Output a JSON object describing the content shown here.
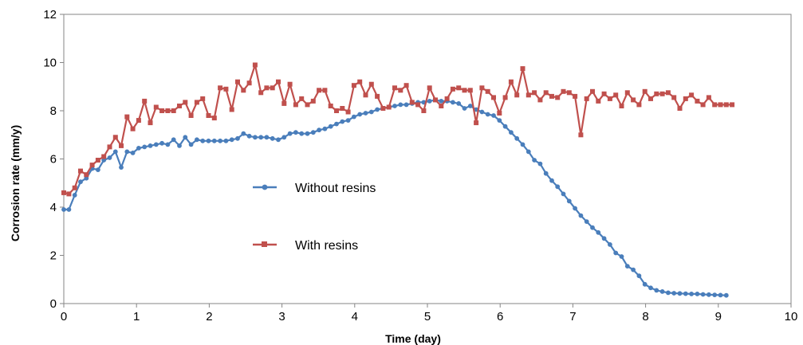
{
  "chart_data": {
    "type": "line",
    "xlabel": "Time (day)",
    "ylabel": "Corrosion rate (mm/y)",
    "xlim": [
      0,
      10
    ],
    "ylim": [
      0,
      12
    ],
    "xticks": [
      "0",
      "1",
      "2",
      "3",
      "4",
      "5",
      "6",
      "7",
      "8",
      "9",
      "10"
    ],
    "yticks": [
      "0",
      "2",
      "4",
      "6",
      "8",
      "10",
      "12"
    ],
    "grid": false,
    "legend": "center-left",
    "series": [
      {
        "name": "Without resins",
        "color": "#4a7ebb",
        "marker": "circle",
        "x": [
          0,
          0.07,
          0.15,
          0.23,
          0.31,
          0.39,
          0.47,
          0.55,
          0.63,
          0.71,
          0.79,
          0.87,
          0.95,
          1.03,
          1.11,
          1.19,
          1.27,
          1.35,
          1.43,
          1.51,
          1.59,
          1.67,
          1.75,
          1.83,
          1.91,
          1.99,
          2.07,
          2.15,
          2.23,
          2.31,
          2.39,
          2.47,
          2.55,
          2.63,
          2.71,
          2.79,
          2.87,
          2.95,
          3.03,
          3.11,
          3.19,
          3.27,
          3.35,
          3.43,
          3.51,
          3.59,
          3.67,
          3.75,
          3.83,
          3.91,
          3.99,
          4.07,
          4.15,
          4.23,
          4.31,
          4.39,
          4.47,
          4.55,
          4.63,
          4.71,
          4.79,
          4.87,
          4.95,
          5.03,
          5.11,
          5.19,
          5.27,
          5.35,
          5.43,
          5.51,
          5.59,
          5.67,
          5.75,
          5.83,
          5.91,
          5.99,
          6.07,
          6.15,
          6.23,
          6.31,
          6.39,
          6.47,
          6.55,
          6.63,
          6.71,
          6.79,
          6.87,
          6.95,
          7.03,
          7.11,
          7.19,
          7.27,
          7.35,
          7.43,
          7.51,
          7.59,
          7.67,
          7.75,
          7.83,
          7.91,
          7.99,
          8.07,
          8.15,
          8.23,
          8.31,
          8.39,
          8.47,
          8.55,
          8.63,
          8.71,
          8.79,
          8.87,
          8.95,
          9.03,
          9.11
        ],
        "y": [
          3.9,
          3.9,
          4.5,
          5.05,
          5.2,
          5.6,
          5.55,
          5.95,
          6.05,
          6.3,
          5.65,
          6.3,
          6.25,
          6.45,
          6.5,
          6.55,
          6.6,
          6.65,
          6.6,
          6.8,
          6.55,
          6.9,
          6.6,
          6.8,
          6.75,
          6.75,
          6.75,
          6.75,
          6.75,
          6.8,
          6.85,
          7.05,
          6.95,
          6.9,
          6.9,
          6.9,
          6.85,
          6.8,
          6.9,
          7.05,
          7.1,
          7.05,
          7.05,
          7.1,
          7.2,
          7.25,
          7.35,
          7.45,
          7.55,
          7.6,
          7.75,
          7.85,
          7.9,
          7.95,
          8.05,
          8.1,
          8.15,
          8.2,
          8.25,
          8.25,
          8.3,
          8.35,
          8.35,
          8.4,
          8.45,
          8.4,
          8.4,
          8.35,
          8.3,
          8.1,
          8.2,
          8.05,
          7.95,
          7.85,
          7.8,
          7.6,
          7.35,
          7.1,
          6.85,
          6.6,
          6.3,
          5.95,
          5.8,
          5.4,
          5.1,
          4.85,
          4.55,
          4.25,
          3.95,
          3.65,
          3.4,
          3.15,
          2.95,
          2.7,
          2.45,
          2.1,
          1.95,
          1.55,
          1.4,
          1.15,
          0.8,
          0.65,
          0.55,
          0.5,
          0.45,
          0.43,
          0.42,
          0.41,
          0.4,
          0.4,
          0.38,
          0.37,
          0.36,
          0.35,
          0.34
        ]
      },
      {
        "name": "With resins",
        "color": "#c0504d",
        "marker": "square",
        "x": [
          0,
          0.07,
          0.15,
          0.23,
          0.31,
          0.39,
          0.47,
          0.55,
          0.63,
          0.71,
          0.79,
          0.87,
          0.95,
          1.03,
          1.11,
          1.19,
          1.27,
          1.35,
          1.43,
          1.51,
          1.59,
          1.67,
          1.75,
          1.83,
          1.91,
          1.99,
          2.07,
          2.15,
          2.23,
          2.31,
          2.39,
          2.47,
          2.55,
          2.63,
          2.71,
          2.79,
          2.87,
          2.95,
          3.03,
          3.11,
          3.19,
          3.27,
          3.35,
          3.43,
          3.51,
          3.59,
          3.67,
          3.75,
          3.83,
          3.91,
          3.99,
          4.07,
          4.15,
          4.23,
          4.31,
          4.39,
          4.47,
          4.55,
          4.63,
          4.71,
          4.79,
          4.87,
          4.95,
          5.03,
          5.11,
          5.19,
          5.27,
          5.35,
          5.43,
          5.51,
          5.59,
          5.67,
          5.75,
          5.83,
          5.91,
          5.99,
          6.07,
          6.15,
          6.23,
          6.31,
          6.39,
          6.47,
          6.55,
          6.63,
          6.71,
          6.79,
          6.87,
          6.95,
          7.03,
          7.11,
          7.19,
          7.27,
          7.35,
          7.43,
          7.51,
          7.59,
          7.67,
          7.75,
          7.83,
          7.91,
          7.99,
          8.07,
          8.15,
          8.23,
          8.31,
          8.39,
          8.47,
          8.55,
          8.63,
          8.71,
          8.79,
          8.87,
          8.95,
          9.03,
          9.11,
          9.19
        ],
        "y": [
          4.6,
          4.55,
          4.8,
          5.5,
          5.35,
          5.75,
          5.95,
          6.1,
          6.5,
          6.9,
          6.55,
          7.75,
          7.25,
          7.6,
          8.4,
          7.5,
          8.15,
          8.0,
          8.0,
          8.0,
          8.2,
          8.35,
          7.8,
          8.35,
          8.5,
          7.8,
          7.7,
          8.95,
          8.9,
          8.05,
          9.2,
          8.85,
          9.15,
          9.9,
          8.75,
          8.95,
          8.95,
          9.2,
          8.3,
          9.1,
          8.25,
          8.5,
          8.25,
          8.4,
          8.85,
          8.85,
          8.2,
          8.0,
          8.1,
          7.95,
          9.05,
          9.2,
          8.65,
          9.1,
          8.6,
          8.1,
          8.15,
          8.95,
          8.85,
          9.05,
          8.35,
          8.25,
          8.0,
          8.95,
          8.45,
          8.2,
          8.5,
          8.9,
          8.95,
          8.85,
          8.85,
          7.5,
          8.95,
          8.8,
          8.55,
          7.9,
          8.55,
          9.2,
          8.65,
          9.75,
          8.65,
          8.75,
          8.45,
          8.75,
          8.6,
          8.55,
          8.8,
          8.75,
          8.6,
          7.0,
          8.5,
          8.8,
          8.4,
          8.7,
          8.5,
          8.65,
          8.2,
          8.75,
          8.45,
          8.25,
          8.8,
          8.5,
          8.7,
          8.7,
          8.75,
          8.55,
          8.1,
          8.5,
          8.65,
          8.4,
          8.25,
          8.55,
          8.25,
          8.25,
          8.25,
          8.25
        ]
      }
    ]
  }
}
